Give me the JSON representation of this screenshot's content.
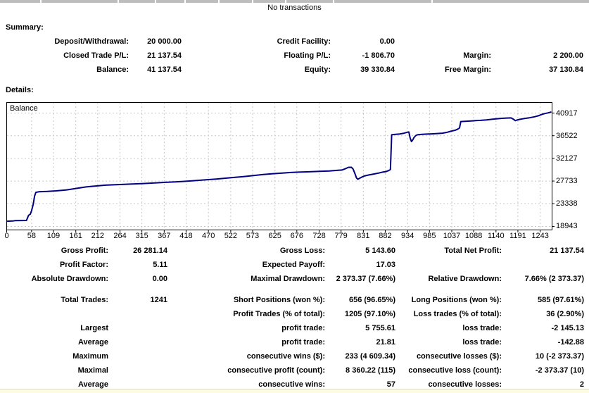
{
  "header": {
    "no_transactions": "No transactions",
    "column_separators_x": [
      57,
      167,
      220,
      262,
      310,
      358,
      405,
      473,
      613
    ]
  },
  "summary": {
    "heading": "Summary:",
    "rows": [
      {
        "cells": [
          "Deposit/Withdrawal:",
          "20 000.00",
          "Credit Facility:",
          "0.00",
          "",
          ""
        ]
      },
      {
        "cells": [
          "Closed Trade P/L:",
          "21 137.54",
          "Floating P/L:",
          "-1 806.70",
          "Margin:",
          "2 200.00"
        ]
      },
      {
        "cells": [
          "Balance:",
          "41 137.54",
          "Equity:",
          "39 330.84",
          "Free Margin:",
          "37 130.84"
        ]
      }
    ]
  },
  "details": {
    "heading": "Details:",
    "rows": [
      {
        "cells": [
          "Gross Profit:",
          "26 281.14",
          "Gross Loss:",
          "5 143.60",
          "Total Net Profit:",
          "21 137.54"
        ]
      },
      {
        "cells": [
          "Profit Factor:",
          "5.11",
          "Expected Payoff:",
          "17.03",
          "",
          ""
        ]
      },
      {
        "cells": [
          "Absolute Drawdown:",
          "0.00",
          "Maximal Drawdown:",
          "2 373.37 (7.66%)",
          "Relative Drawdown:",
          "7.66% (2 373.37)"
        ]
      },
      {
        "cells": [
          "Total Trades:",
          "1241",
          "Short Positions (won %):",
          "656 (96.65%)",
          "Long Positions (won %):",
          "585 (97.61%)"
        ]
      },
      {
        "cells": [
          "",
          "",
          "Profit Trades (% of total):",
          "1205 (97.10%)",
          "Loss trades (% of total):",
          "36 (2.90%)"
        ]
      },
      {
        "cells": [
          "Largest",
          "",
          "profit trade:",
          "5 755.61",
          "loss trade:",
          "-2 145.13"
        ]
      },
      {
        "cells": [
          "Average",
          "",
          "profit trade:",
          "21.81",
          "loss trade:",
          "-142.88"
        ]
      },
      {
        "cells": [
          "Maximum",
          "",
          "consecutive wins ($):",
          "233 (4 609.34)",
          "consecutive losses ($):",
          "10 (-2 373.37)"
        ]
      },
      {
        "cells": [
          "Maximal",
          "",
          "consecutive profit (count):",
          "8 360.22 (115)",
          "consecutive loss (count):",
          "-2 373.37 (10)"
        ]
      },
      {
        "cells": [
          "Average",
          "",
          "consecutive wins:",
          "57",
          "consecutive losses:",
          "2"
        ]
      }
    ]
  },
  "chart_data": {
    "type": "line",
    "series_label": "Balance",
    "line_color": "#000080",
    "grid_color": "#c6c6c6",
    "border_color": "#000000",
    "background": "#ffffff",
    "legend_position": "top-left-inside",
    "y_axis_side": "right",
    "grid": "dashed",
    "x_ticks": [
      0,
      58,
      109,
      161,
      212,
      264,
      315,
      367,
      418,
      470,
      522,
      573,
      625,
      676,
      728,
      779,
      831,
      882,
      934,
      985,
      1037,
      1088,
      1140,
      1191,
      1243
    ],
    "y_ticks": [
      40917,
      36522,
      32127,
      27733,
      23338,
      18943
    ],
    "xlim": [
      0,
      1269
    ],
    "ylim": [
      18258,
      42965
    ],
    "points": [
      [
        0,
        19950
      ],
      [
        14,
        19990
      ],
      [
        19,
        20060
      ],
      [
        46,
        20100
      ],
      [
        51,
        21100
      ],
      [
        55,
        21300
      ],
      [
        58,
        22000
      ],
      [
        62,
        23300
      ],
      [
        65,
        24800
      ],
      [
        68,
        25550
      ],
      [
        75,
        25660
      ],
      [
        95,
        25720
      ],
      [
        115,
        25830
      ],
      [
        140,
        26020
      ],
      [
        161,
        26300
      ],
      [
        185,
        26600
      ],
      [
        205,
        26760
      ],
      [
        230,
        26940
      ],
      [
        264,
        27060
      ],
      [
        292,
        27160
      ],
      [
        318,
        27250
      ],
      [
        345,
        27380
      ],
      [
        370,
        27490
      ],
      [
        397,
        27600
      ],
      [
        420,
        27700
      ],
      [
        443,
        27840
      ],
      [
        465,
        27980
      ],
      [
        488,
        28130
      ],
      [
        510,
        28290
      ],
      [
        530,
        28440
      ],
      [
        552,
        28610
      ],
      [
        575,
        28800
      ],
      [
        598,
        29000
      ],
      [
        618,
        29150
      ],
      [
        642,
        29290
      ],
      [
        662,
        29390
      ],
      [
        680,
        29460
      ],
      [
        705,
        29530
      ],
      [
        730,
        29610
      ],
      [
        752,
        29700
      ],
      [
        772,
        29840
      ],
      [
        781,
        29880
      ],
      [
        789,
        30120
      ],
      [
        796,
        30390
      ],
      [
        803,
        30400
      ],
      [
        807,
        30080
      ],
      [
        811,
        29250
      ],
      [
        815,
        28350
      ],
      [
        818,
        28090
      ],
      [
        823,
        28310
      ],
      [
        828,
        28520
      ],
      [
        833,
        28710
      ],
      [
        843,
        28910
      ],
      [
        855,
        29090
      ],
      [
        867,
        29290
      ],
      [
        877,
        29490
      ],
      [
        884,
        29570
      ],
      [
        890,
        29760
      ],
      [
        894,
        29990
      ],
      [
        897,
        36700
      ],
      [
        906,
        36790
      ],
      [
        916,
        36870
      ],
      [
        926,
        37010
      ],
      [
        933,
        37190
      ],
      [
        937,
        37240
      ],
      [
        940,
        36100
      ],
      [
        943,
        35390
      ],
      [
        946,
        35700
      ],
      [
        949,
        36150
      ],
      [
        953,
        36550
      ],
      [
        957,
        36700
      ],
      [
        965,
        36770
      ],
      [
        978,
        36840
      ],
      [
        990,
        36880
      ],
      [
        1003,
        36940
      ],
      [
        1015,
        37010
      ],
      [
        1027,
        37210
      ],
      [
        1037,
        37430
      ],
      [
        1045,
        37590
      ],
      [
        1051,
        37810
      ],
      [
        1055,
        38020
      ],
      [
        1058,
        39270
      ],
      [
        1068,
        39320
      ],
      [
        1082,
        39390
      ],
      [
        1092,
        39440
      ],
      [
        1104,
        39500
      ],
      [
        1118,
        39600
      ],
      [
        1132,
        39710
      ],
      [
        1143,
        39810
      ],
      [
        1154,
        39900
      ],
      [
        1165,
        39950
      ],
      [
        1175,
        39980
      ],
      [
        1181,
        39700
      ],
      [
        1185,
        39450
      ],
      [
        1189,
        39570
      ],
      [
        1196,
        39700
      ],
      [
        1206,
        39850
      ],
      [
        1218,
        40000
      ],
      [
        1230,
        40190
      ],
      [
        1240,
        40420
      ],
      [
        1247,
        40660
      ],
      [
        1254,
        40820
      ],
      [
        1262,
        40960
      ],
      [
        1269,
        41140
      ]
    ]
  }
}
